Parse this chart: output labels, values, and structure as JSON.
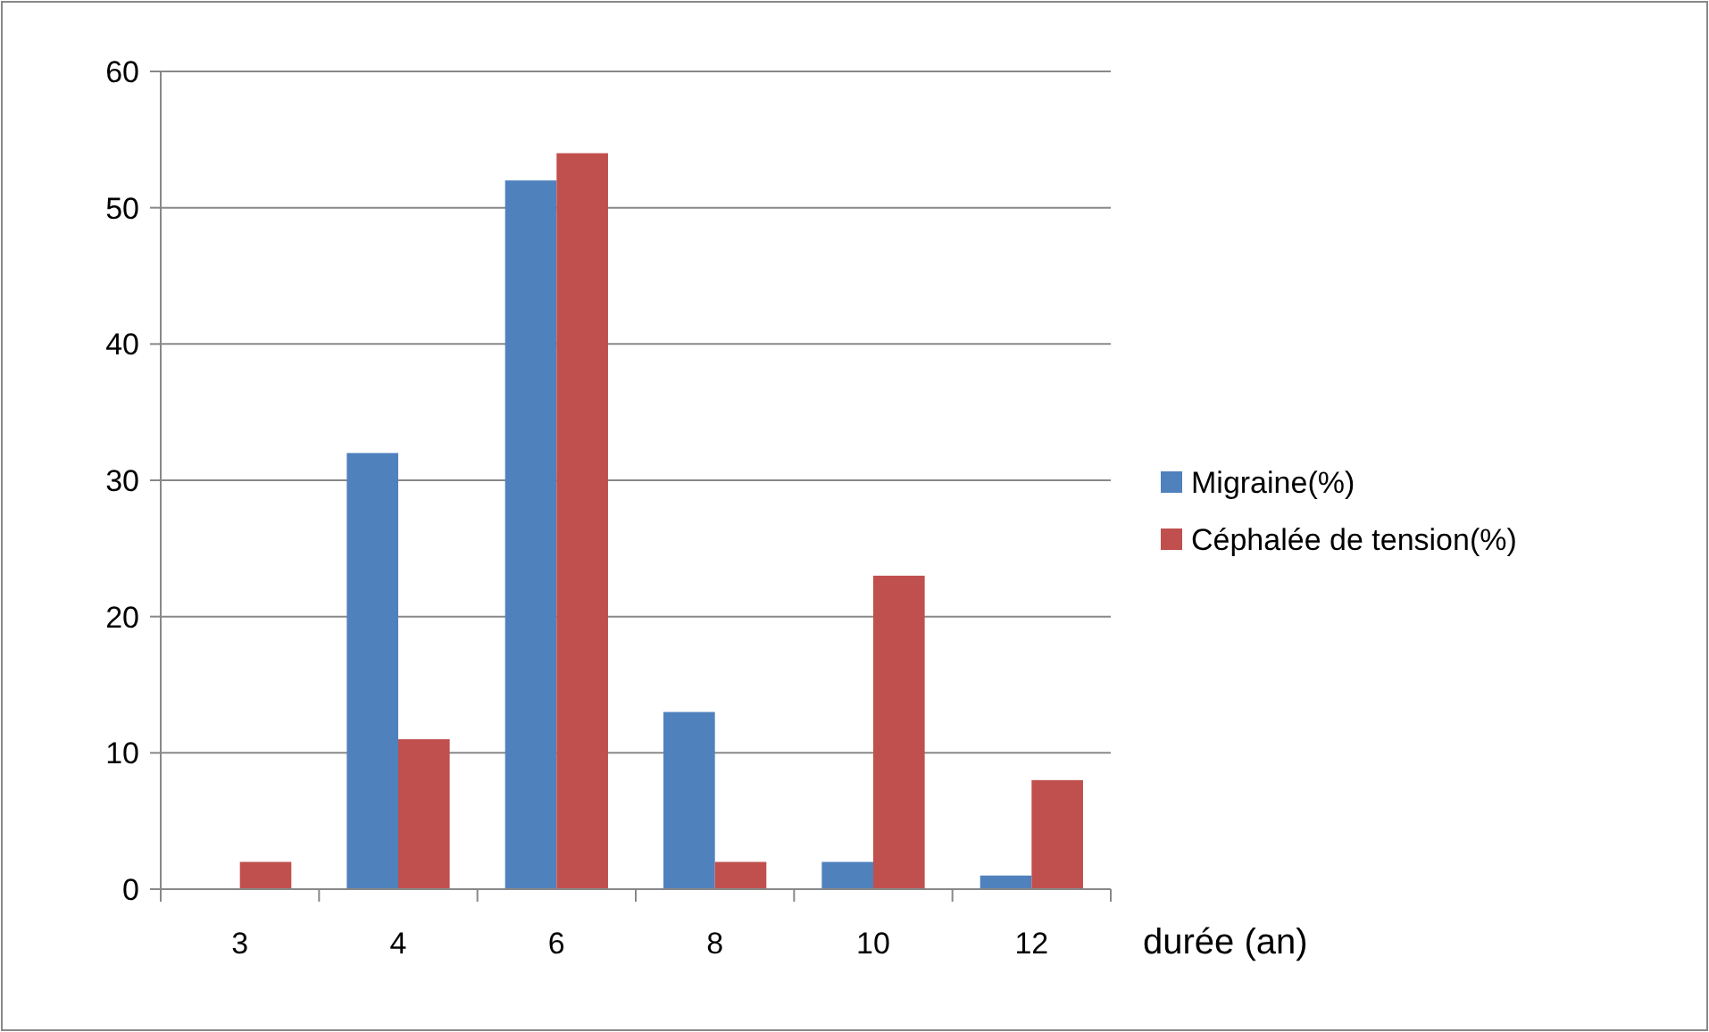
{
  "chart_data": {
    "type": "bar",
    "xlabel": "durée (an)",
    "categories": [
      "3",
      "4",
      "6",
      "8",
      "10",
      "12"
    ],
    "series": [
      {
        "name": "Migraine(%)",
        "color": "#4f81bd",
        "values": [
          0,
          32,
          52,
          13,
          2,
          1
        ]
      },
      {
        "name": "Céphalée de tension(%)",
        "color": "#c0504d",
        "values": [
          2,
          11,
          54,
          2,
          23,
          8
        ]
      }
    ],
    "ylim": [
      0,
      60
    ],
    "yticks": [
      0,
      10,
      20,
      30,
      40,
      50,
      60
    ],
    "grid": "y",
    "legend": "right"
  }
}
